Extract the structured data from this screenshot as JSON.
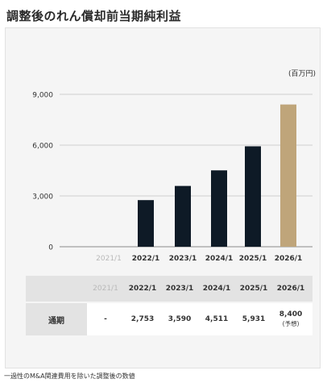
{
  "title": "調整後のれん償却前当期純利益",
  "unit_label": "(百万円)",
  "footnote": "一過性のM&A関連費用を除いた調整後の数値",
  "colors": {
    "actual_bar": "#0e1a26",
    "forecast_bar": "#bfa57a",
    "gridline": "#cfcfcf",
    "muted_text": "#b9b9b9"
  },
  "chart_data": {
    "type": "bar",
    "categories": [
      "2021/1",
      "2022/1",
      "2023/1",
      "2024/1",
      "2025/1",
      "2026/1"
    ],
    "values": [
      null,
      2753,
      3590,
      4511,
      5931,
      8400
    ],
    "forecast_flags": [
      false,
      false,
      false,
      false,
      false,
      true
    ],
    "yticks": [
      "0",
      "3,000",
      "6,000",
      "9,000"
    ],
    "ytick_values": [
      0,
      3000,
      6000,
      9000
    ],
    "ylim": [
      0,
      9000
    ],
    "ylabel": "(百万円)",
    "grid": true,
    "title": "調整後のれん償却前当期純利益"
  },
  "table": {
    "headers": [
      "2021/1",
      "2022/1",
      "2023/1",
      "2024/1",
      "2025/1",
      "2026/1"
    ],
    "row_label": "通期",
    "values": [
      "-",
      "2,753",
      "3,590",
      "4,511",
      "5,931",
      "8,400"
    ],
    "forecast_note": "(予想)"
  }
}
